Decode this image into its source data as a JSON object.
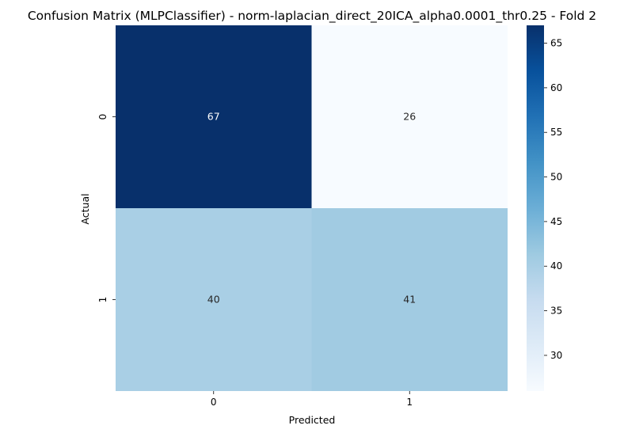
{
  "chart_data": {
    "type": "heatmap",
    "title": "Confusion Matrix (MLPClassifier) - norm-laplacian_direct_20ICA_alpha0.0001_thr0.25 - Fold 2",
    "xlabel": "Predicted",
    "ylabel": "Actual",
    "x_categories": [
      "0",
      "1"
    ],
    "y_categories": [
      "0",
      "1"
    ],
    "matrix": [
      [
        67,
        26
      ],
      [
        40,
        41
      ]
    ],
    "annotations": true,
    "colormap": "Blues",
    "colorbar": {
      "min": 26,
      "max": 67,
      "ticks": [
        "30",
        "35",
        "40",
        "45",
        "50",
        "55",
        "60",
        "65"
      ]
    }
  }
}
